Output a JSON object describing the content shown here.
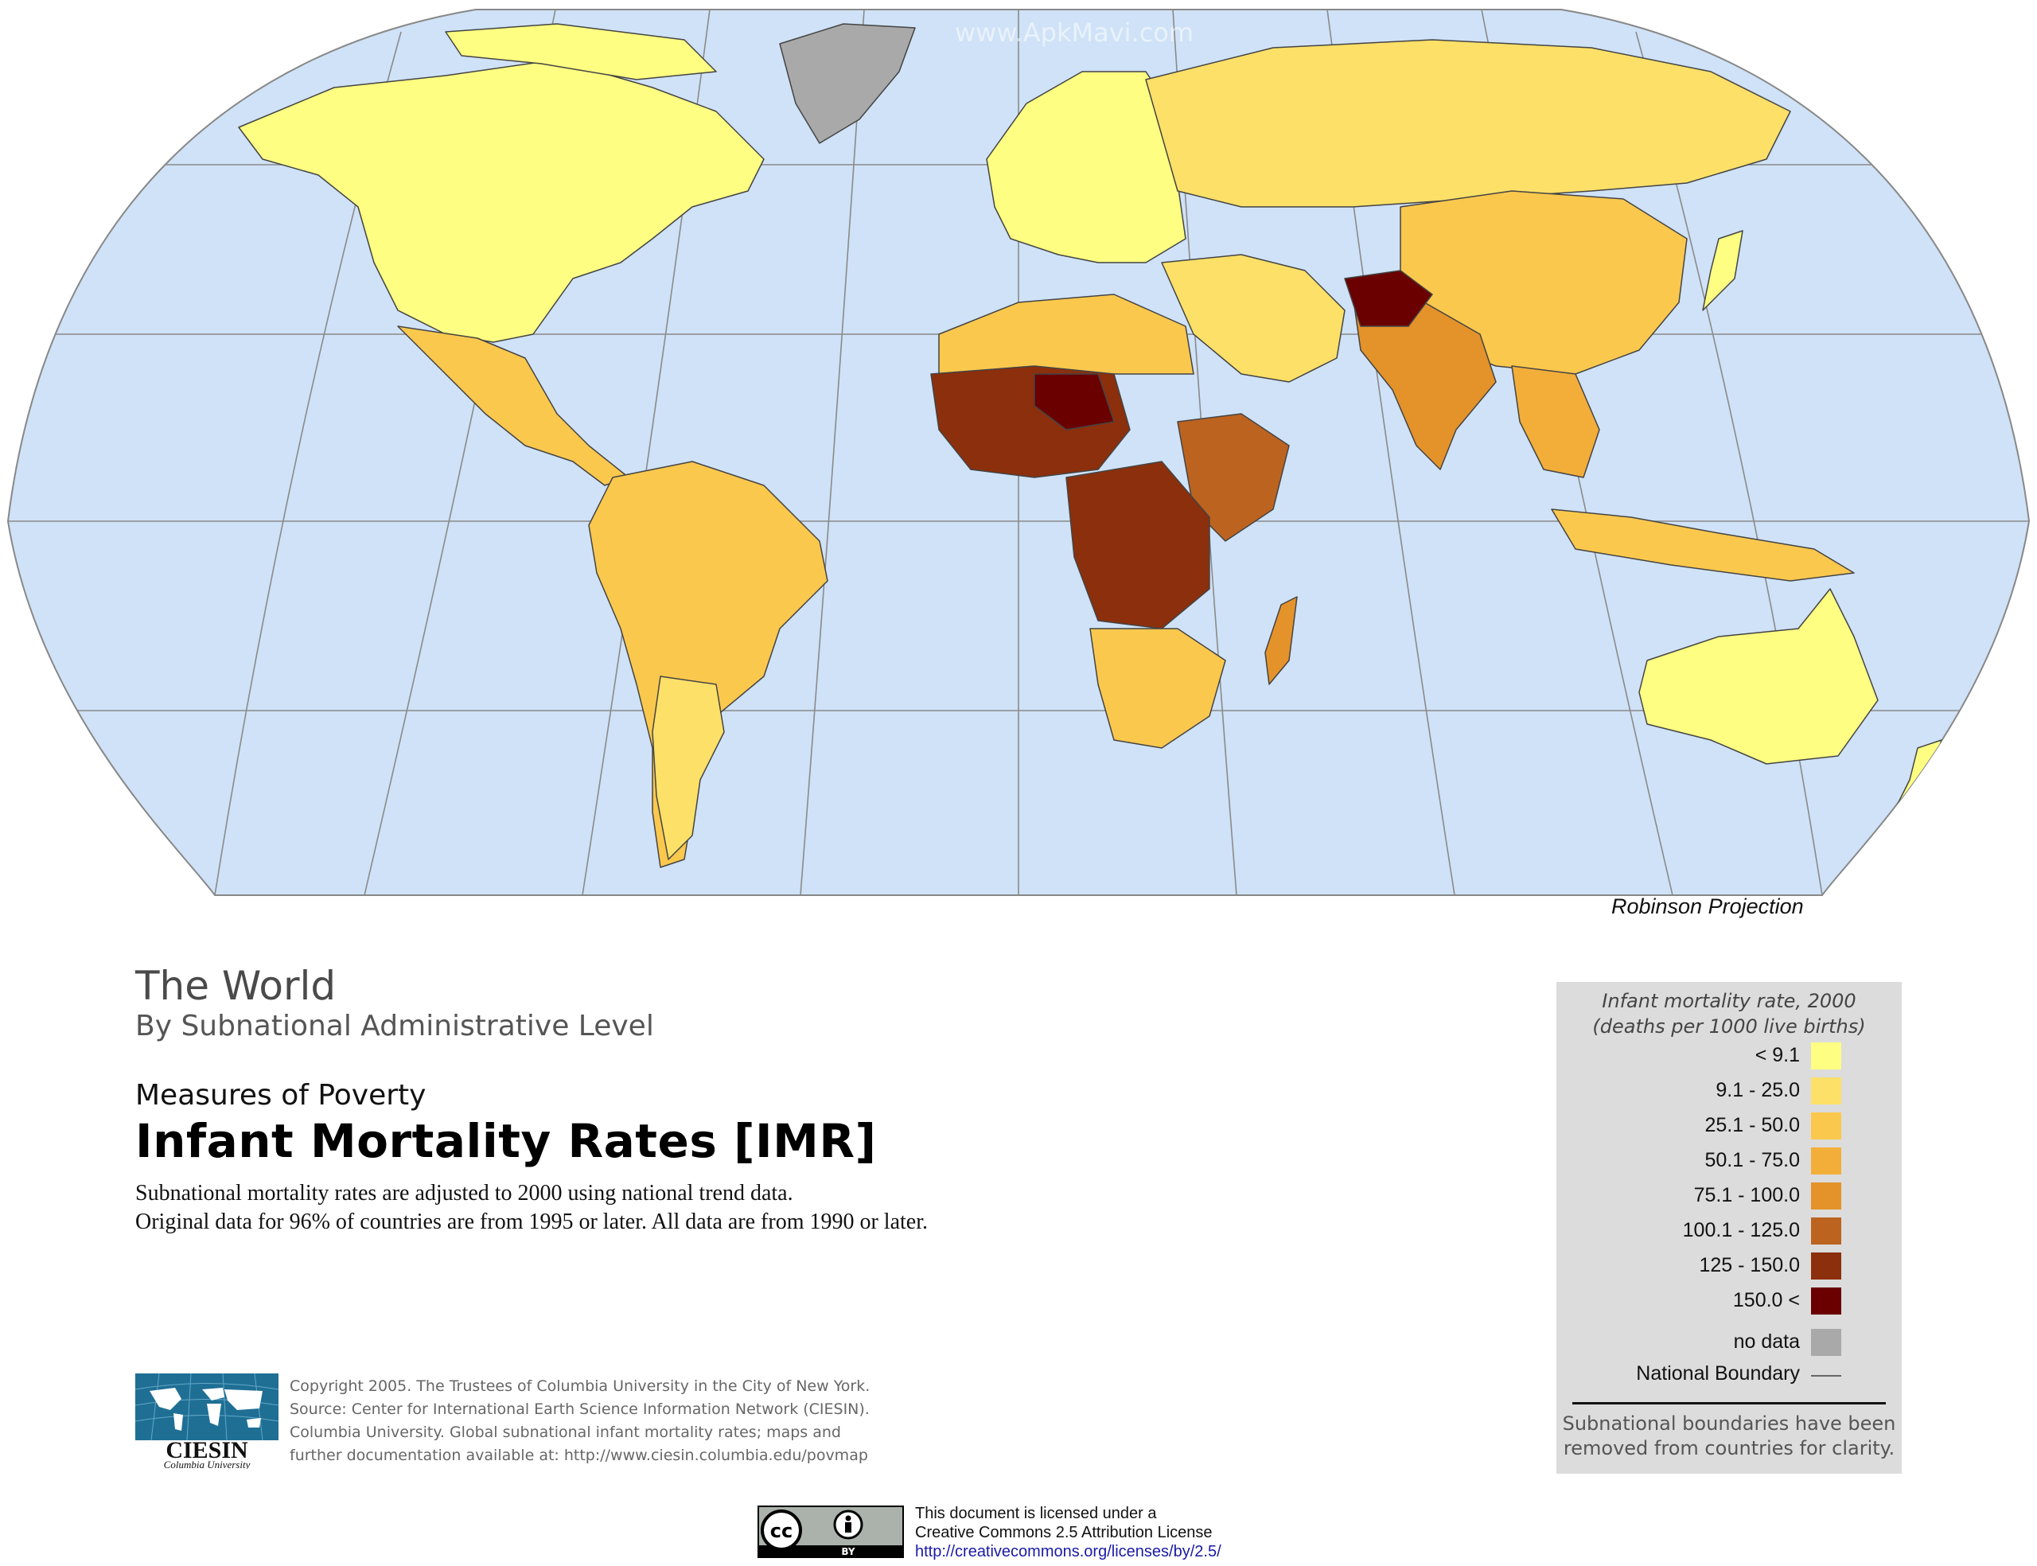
{
  "map": {
    "projection_label": "Robinson Projection",
    "ocean_color": "#cfe2f7",
    "graticule_color": "#8a8a8a",
    "no_data_color": "#a9a9a9",
    "watermark": "www.ApkMavi.com"
  },
  "title": {
    "world": "The World",
    "subtitle": "By Subnational Administrative Level",
    "kicker": "Measures of Poverty",
    "main": "Infant Mortality Rates [IMR]",
    "desc_line1": "Subnational mortality rates are adjusted to 2000 using national trend data.",
    "desc_line2": "Original data for 96% of countries are from 1995 or later. All data are from 1990 or later."
  },
  "legend": {
    "title_line1": "Infant mortality rate, 2000",
    "title_line2": "(deaths per 1000 live births)",
    "classes": [
      {
        "label": "< 9.1",
        "color": "#fefe82"
      },
      {
        "label": "9.1 - 25.0",
        "color": "#fde068"
      },
      {
        "label": "25.1 - 50.0",
        "color": "#fbc84e"
      },
      {
        "label": "50.1 - 75.0",
        "color": "#f3ae3a"
      },
      {
        "label": "75.1 - 100.0",
        "color": "#e4922a"
      },
      {
        "label": "100.1 - 125.0",
        "color": "#bd6320"
      },
      {
        "label": "125 - 150.0",
        "color": "#8c2f0c"
      },
      {
        "label": "150.0 <",
        "color": "#6a0000"
      }
    ],
    "no_data": {
      "label": "no data",
      "color": "#a9a9a9"
    },
    "boundary_label": "National Boundary",
    "note_line1": "Subnational boundaries have been",
    "note_line2": "removed from countries for clarity."
  },
  "credits": {
    "logo_text": "CIESIN",
    "logo_subtext": "Columbia University",
    "line1": "Copyright 2005. The Trustees of Columbia University in the City of New York.",
    "line2": "Source: Center for International Earth Science Information Network (CIESIN).",
    "line3": "Columbia University. Global subnational infant mortality rates; maps and",
    "line4": "further documentation available at: http://www.ciesin.columbia.edu/povmap"
  },
  "license": {
    "cc_label": "cc",
    "by_label": "BY",
    "line1": "This document is licensed under a",
    "line2": "Creative Commons 2.5 Attribution License",
    "link": "http://creativecommons.org/licenses/by/2.5/"
  }
}
